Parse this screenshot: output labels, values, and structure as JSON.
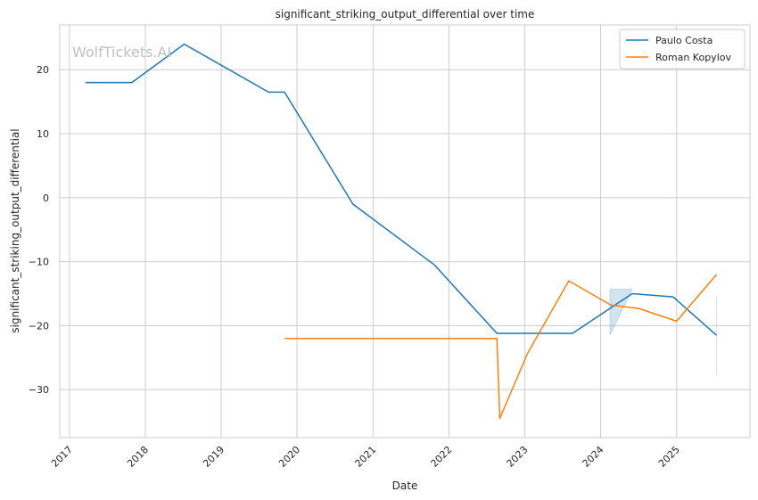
{
  "chart_data": {
    "type": "line",
    "title": "significant_striking_output_differential over time",
    "xlabel": "Date",
    "ylabel": "significant_striking_output_differential",
    "watermark": "WolfTickets.AI",
    "x_ticks": [
      "2017",
      "2018",
      "2019",
      "2020",
      "2021",
      "2022",
      "2023",
      "2024",
      "2025"
    ],
    "y_ticks": [
      20,
      10,
      0,
      -10,
      -20,
      -30
    ],
    "xlim": [
      "2016-11-15",
      "2025-12-20"
    ],
    "ylim": [
      -37.5,
      27
    ],
    "grid": true,
    "legend_position": "top-right",
    "series": [
      {
        "name": "Paulo Costa",
        "color": "#1f77b4",
        "points": [
          [
            "2017-03-18",
            18.0
          ],
          [
            "2017-10-28",
            18.0
          ],
          [
            "2018-07-07",
            24.0
          ],
          [
            "2019-08-17",
            16.5
          ],
          [
            "2019-11-02",
            16.5
          ],
          [
            "2020-09-26",
            -1.0
          ],
          [
            "2021-10-23",
            -10.5
          ],
          [
            "2022-08-20",
            -21.2
          ],
          [
            "2023-08-19",
            -21.2
          ],
          [
            "2024-06-01",
            -15.0
          ],
          [
            "2024-12-15",
            -15.5
          ],
          [
            "2025-07-12",
            -21.5
          ]
        ],
        "bands": [
          {
            "x": [
              "2024-02-15",
              "2024-06-01"
            ],
            "upper": [
              -14.3,
              -14.3
            ],
            "lower": [
              -21.5,
              -14.3
            ]
          },
          {
            "x": [
              "2025-07-12",
              "2025-07-12"
            ],
            "upper": [
              -15.6,
              -15.6
            ],
            "lower": [
              -27.6,
              -27.6
            ]
          }
        ]
      },
      {
        "name": "Roman Kopylov",
        "color": "#ff7f0e",
        "points": [
          [
            "2019-11-02",
            -22.0
          ],
          [
            "2022-08-20",
            -22.0
          ],
          [
            "2022-09-03",
            -34.5
          ],
          [
            "2023-01-15",
            -24.3
          ],
          [
            "2023-08-01",
            -13.0
          ],
          [
            "2024-02-20",
            -16.8
          ],
          [
            "2024-07-01",
            -17.3
          ],
          [
            "2025-01-01",
            -19.3
          ],
          [
            "2025-07-12",
            -12.0
          ]
        ]
      }
    ]
  }
}
